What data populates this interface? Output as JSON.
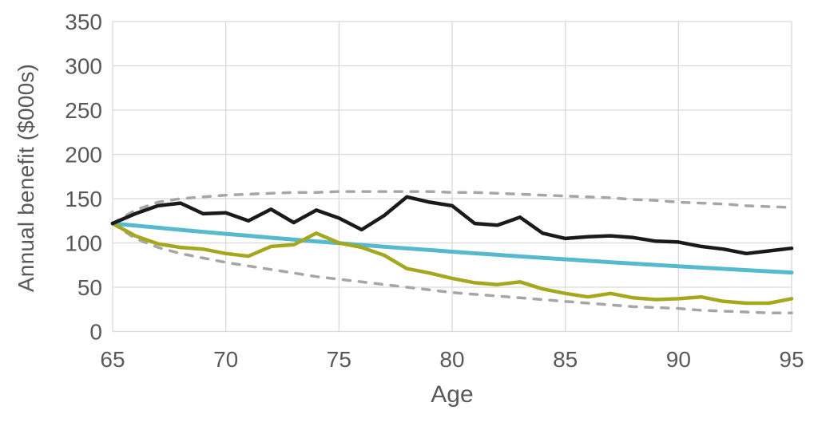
{
  "chart_data": {
    "type": "line",
    "title": "",
    "xlabel": "Age",
    "ylabel": "Annual benefit ($000s)",
    "xlim": [
      65,
      95
    ],
    "ylim": [
      0,
      350
    ],
    "x_ticks": [
      65,
      70,
      75,
      80,
      85,
      90,
      95
    ],
    "y_ticks": [
      0,
      50,
      100,
      150,
      200,
      250,
      300,
      350
    ],
    "grid": true,
    "legend": false,
    "x": [
      65,
      66,
      67,
      68,
      69,
      70,
      71,
      72,
      73,
      74,
      75,
      76,
      77,
      78,
      79,
      80,
      81,
      82,
      83,
      84,
      85,
      86,
      87,
      88,
      89,
      90,
      91,
      92,
      93,
      94,
      95
    ],
    "series": [
      {
        "id": "upper-dashed-band",
        "name": "upper dashed envelope (gray)",
        "color": "#a6a6a6",
        "style": "dashed",
        "width": 3.5,
        "values": [
          122,
          137,
          146,
          150,
          152,
          154,
          155,
          156,
          157,
          157,
          158,
          158,
          158,
          158,
          158,
          157,
          157,
          156,
          155,
          154,
          153,
          152,
          151,
          149,
          148,
          146,
          145,
          144,
          142,
          141,
          140
        ]
      },
      {
        "id": "lower-dashed-band",
        "name": "lower dashed envelope (gray)",
        "color": "#a6a6a6",
        "style": "dashed",
        "width": 3.5,
        "values": [
          122,
          105,
          95,
          88,
          83,
          78,
          74,
          70,
          66,
          62,
          59,
          56,
          53,
          50,
          47,
          44,
          42,
          40,
          38,
          36,
          34,
          32,
          30,
          28,
          27,
          26,
          24,
          23,
          22,
          21,
          21
        ]
      },
      {
        "id": "teal-straight-line",
        "name": "smooth declining line (teal)",
        "color": "#56b9cd",
        "style": "solid",
        "width": 5,
        "values": [
          122,
          119.6,
          117.2,
          114.8,
          112.5,
          110.3,
          108.1,
          105.9,
          103.8,
          101.7,
          99.7,
          97.7,
          95.8,
          93.8,
          92,
          90.1,
          88.3,
          86.6,
          84.8,
          83.1,
          81.5,
          79.8,
          78.2,
          76.7,
          75.1,
          73.6,
          72.2,
          70.7,
          69.3,
          67.9,
          66.6
        ]
      },
      {
        "id": "olive-solid-line",
        "name": "volatile declining line (olive)",
        "color": "#a4a81f",
        "style": "solid",
        "width": 4.5,
        "values": [
          122,
          108,
          99,
          95,
          93,
          88,
          85,
          96,
          98,
          111,
          100,
          95,
          86,
          71,
          66,
          60,
          55,
          53,
          56,
          48,
          43,
          39,
          43,
          38,
          36,
          37,
          39,
          34,
          32,
          32,
          37
        ]
      },
      {
        "id": "black-solid-line",
        "name": "volatile upper line (black)",
        "color": "#1a1a1a",
        "style": "solid",
        "width": 4.5,
        "values": [
          122,
          133,
          142,
          145,
          133,
          134,
          125,
          138,
          123,
          137,
          128,
          115,
          131,
          152,
          146,
          142,
          122,
          120,
          129,
          111,
          105,
          107,
          108,
          106,
          102,
          101,
          96,
          93,
          88,
          91,
          94
        ]
      }
    ],
    "styling": {
      "gridline_color": "#d9d9d9",
      "tick_label_color": "#595959",
      "axis_title_color": "#595959",
      "background": "#ffffff"
    }
  }
}
